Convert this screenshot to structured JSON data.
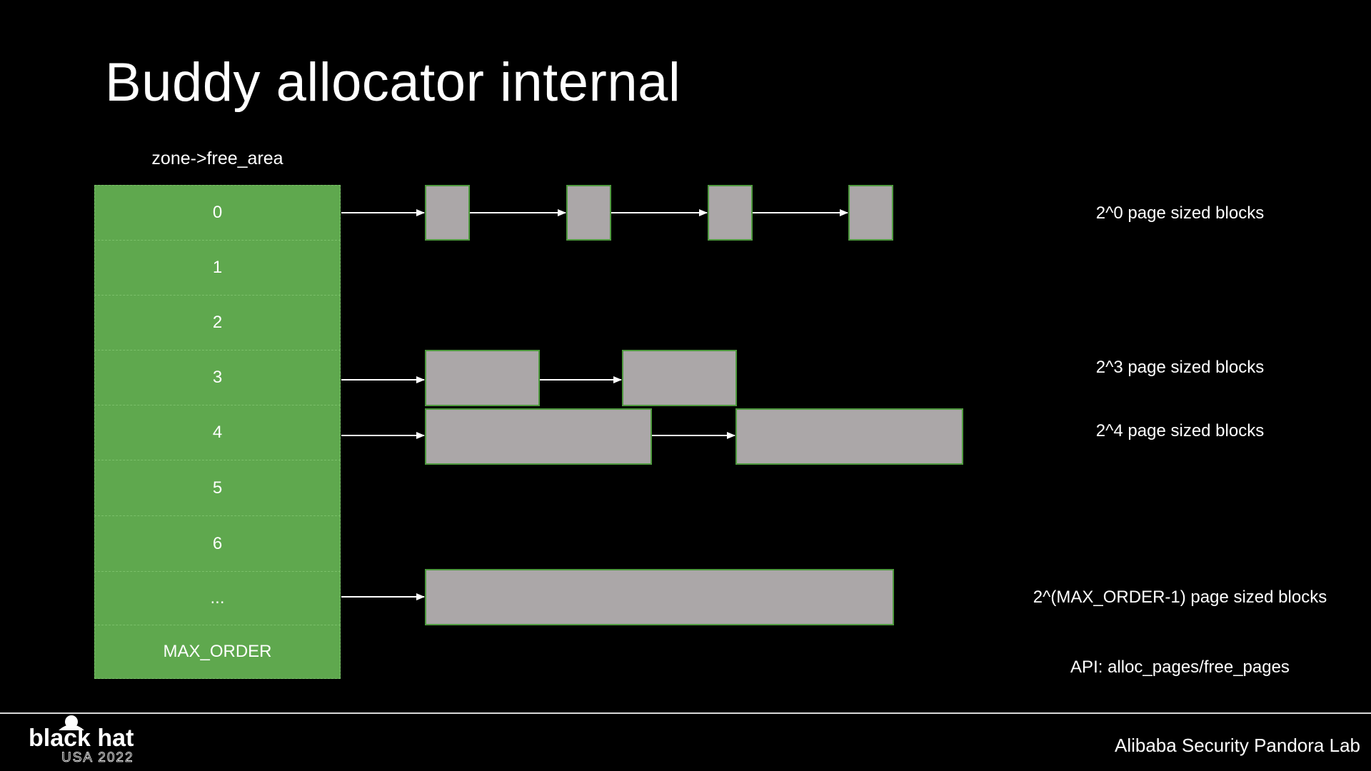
{
  "title": "Buddy allocator internal",
  "array_label": "zone->free_area",
  "orders": [
    "0",
    "1",
    "2",
    "3",
    "4",
    "5",
    "6",
    "...",
    "MAX_ORDER"
  ],
  "row_descriptions": {
    "order0": "2^0 page sized blocks",
    "order3": "2^3 page sized blocks",
    "order4": "2^4 page sized blocks",
    "max": "2^(MAX_ORDER-1) page sized blocks"
  },
  "api_note": "API: alloc_pages/free_pages",
  "footer": {
    "credit": "Alibaba Security Pandora Lab",
    "logo_text": "black hat",
    "logo_subtext": "USA 2022"
  },
  "colors": {
    "background": "#000000",
    "array_cell": "#5fa84e",
    "block_fill": "#aba7a8",
    "block_border": "#4f9a3f",
    "arrow": "#ffffff"
  }
}
